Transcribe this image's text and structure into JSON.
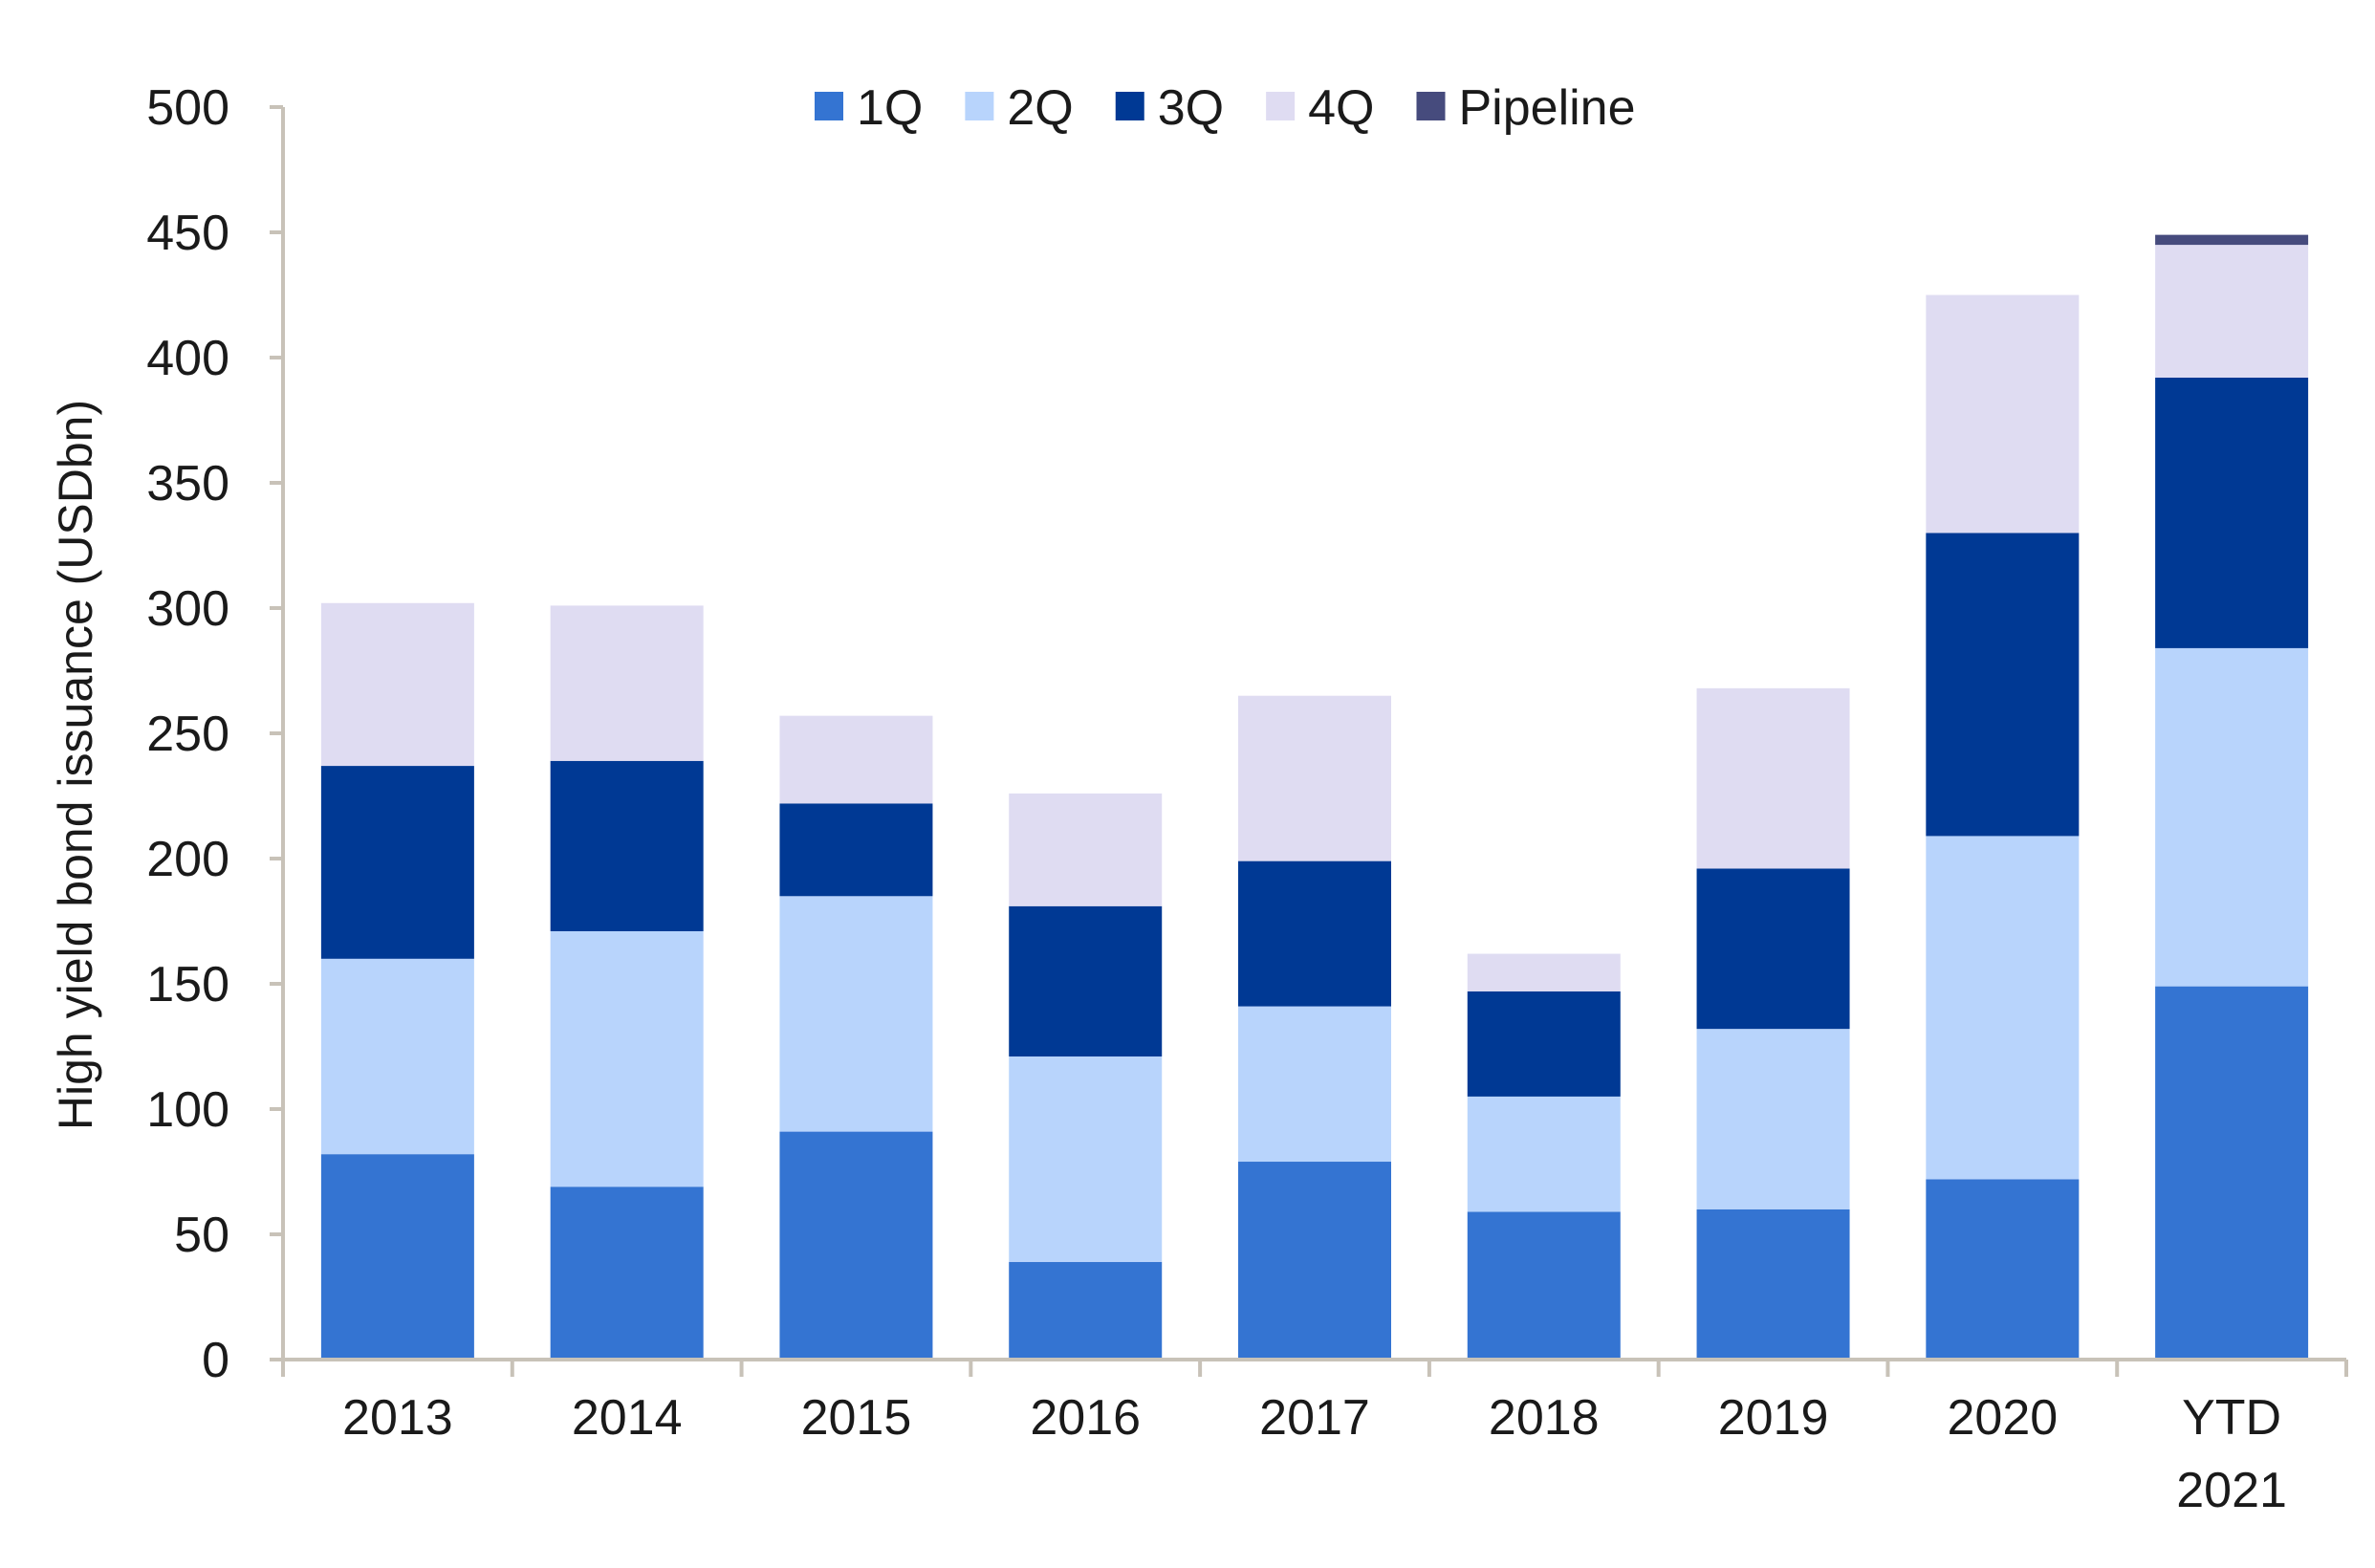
{
  "chart_data": {
    "type": "bar",
    "stacked": true,
    "title": "",
    "xlabel": "",
    "ylabel": "High yield bond issuance (USDbn)",
    "ylim": [
      0,
      500
    ],
    "yticks": [
      0,
      50,
      100,
      150,
      200,
      250,
      300,
      350,
      400,
      450,
      500
    ],
    "grid": false,
    "legend_position": "top-center",
    "categories": [
      [
        "2013"
      ],
      [
        "2014"
      ],
      [
        "2015"
      ],
      [
        "2016"
      ],
      [
        "2017"
      ],
      [
        "2018"
      ],
      [
        "2019"
      ],
      [
        "2020"
      ],
      [
        "YTD",
        "2021"
      ]
    ],
    "series": [
      {
        "name": "1Q",
        "color": "#3474d2",
        "values": [
          82,
          69,
          91,
          39,
          79,
          59,
          60,
          72,
          149
        ]
      },
      {
        "name": "2Q",
        "color": "#b8d4fc",
        "values": [
          78,
          102,
          94,
          82,
          62,
          46,
          72,
          137,
          135
        ]
      },
      {
        "name": "3Q",
        "color": "#003994",
        "values": [
          77,
          68,
          37,
          60,
          58,
          42,
          64,
          121,
          108
        ]
      },
      {
        "name": "4Q",
        "color": "#dfdcf2",
        "values": [
          65,
          62,
          35,
          45,
          66,
          15,
          72,
          95,
          53
        ]
      },
      {
        "name": "Pipeline",
        "color": "#464b7d",
        "values": [
          0,
          0,
          0,
          0,
          0,
          0,
          0,
          0,
          4
        ]
      }
    ]
  }
}
